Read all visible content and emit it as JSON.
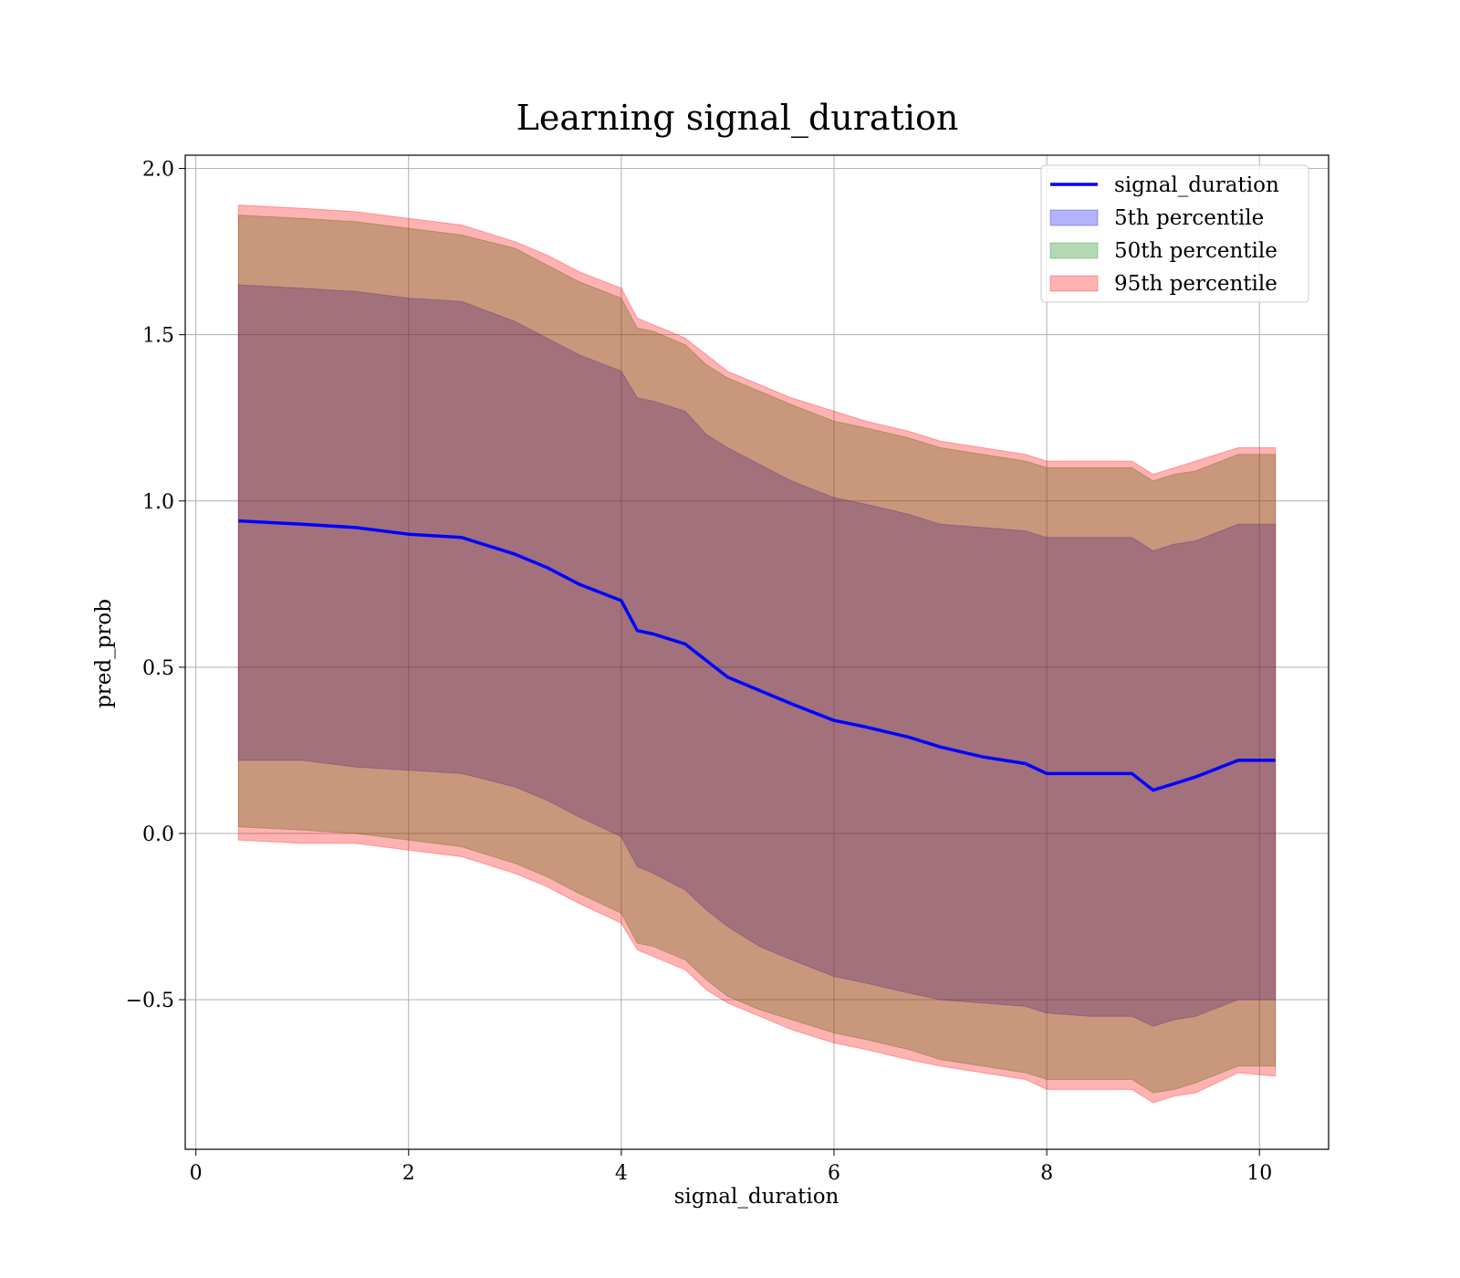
{
  "chart_data": {
    "type": "line",
    "title": "Learning signal_duration",
    "xlabel": "signal_duration",
    "ylabel": "pred_prob",
    "xlim": [
      -0.1,
      10.65
    ],
    "ylim": [
      -0.95,
      2.04
    ],
    "xticks": [
      0,
      2,
      4,
      6,
      8,
      10
    ],
    "xtick_labels": [
      "0",
      "2",
      "4",
      "6",
      "8",
      "10"
    ],
    "yticks": [
      -0.5,
      0.0,
      0.5,
      1.0,
      1.5,
      2.0
    ],
    "ytick_labels": [
      "−0.5",
      "0.0",
      "0.5",
      "1.0",
      "1.5",
      "2.0"
    ],
    "grid": true,
    "legend_position": "top-right",
    "x": [
      0.4,
      1.0,
      1.5,
      2.0,
      2.5,
      3.0,
      3.3,
      3.6,
      4.0,
      4.15,
      4.3,
      4.6,
      4.8,
      5.0,
      5.3,
      5.6,
      6.0,
      6.3,
      6.7,
      7.0,
      7.4,
      7.8,
      8.0,
      8.4,
      8.8,
      9.0,
      9.2,
      9.4,
      9.8,
      10.15
    ],
    "series": [
      {
        "name": "signal_duration",
        "kind": "line",
        "color": "#0000ff",
        "values": [
          0.94,
          0.93,
          0.92,
          0.9,
          0.89,
          0.84,
          0.8,
          0.75,
          0.7,
          0.61,
          0.6,
          0.57,
          0.52,
          0.47,
          0.43,
          0.39,
          0.34,
          0.32,
          0.29,
          0.26,
          0.23,
          0.21,
          0.18,
          0.18,
          0.18,
          0.13,
          0.15,
          0.17,
          0.22,
          0.22
        ]
      },
      {
        "name": "5th percentile",
        "kind": "band",
        "color": "#0000ff",
        "lower": [
          0.22,
          0.22,
          0.2,
          0.19,
          0.18,
          0.14,
          0.1,
          0.05,
          -0.01,
          -0.1,
          -0.12,
          -0.17,
          -0.23,
          -0.28,
          -0.34,
          -0.38,
          -0.43,
          -0.45,
          -0.48,
          -0.5,
          -0.51,
          -0.52,
          -0.54,
          -0.55,
          -0.55,
          -0.58,
          -0.56,
          -0.55,
          -0.5,
          -0.5
        ],
        "upper": [
          1.65,
          1.64,
          1.63,
          1.61,
          1.6,
          1.54,
          1.49,
          1.44,
          1.39,
          1.31,
          1.3,
          1.27,
          1.2,
          1.16,
          1.11,
          1.06,
          1.01,
          0.99,
          0.96,
          0.93,
          0.92,
          0.91,
          0.89,
          0.89,
          0.89,
          0.85,
          0.87,
          0.88,
          0.93,
          0.93
        ]
      },
      {
        "name": "50th percentile",
        "kind": "band",
        "color": "#008000",
        "lower": [
          0.02,
          0.01,
          0.0,
          -0.02,
          -0.04,
          -0.09,
          -0.13,
          -0.18,
          -0.24,
          -0.33,
          -0.34,
          -0.38,
          -0.44,
          -0.49,
          -0.53,
          -0.56,
          -0.6,
          -0.62,
          -0.65,
          -0.68,
          -0.7,
          -0.72,
          -0.74,
          -0.74,
          -0.74,
          -0.78,
          -0.77,
          -0.75,
          -0.7,
          -0.7
        ],
        "upper": [
          1.86,
          1.85,
          1.84,
          1.82,
          1.8,
          1.76,
          1.71,
          1.66,
          1.61,
          1.52,
          1.51,
          1.47,
          1.41,
          1.37,
          1.33,
          1.29,
          1.24,
          1.22,
          1.19,
          1.16,
          1.14,
          1.12,
          1.1,
          1.1,
          1.1,
          1.06,
          1.08,
          1.09,
          1.14,
          1.14
        ]
      },
      {
        "name": "95th percentile",
        "kind": "band",
        "color": "#ff0000",
        "lower": [
          -0.02,
          -0.03,
          -0.03,
          -0.05,
          -0.07,
          -0.12,
          -0.16,
          -0.21,
          -0.27,
          -0.35,
          -0.37,
          -0.41,
          -0.47,
          -0.51,
          -0.55,
          -0.59,
          -0.63,
          -0.65,
          -0.68,
          -0.7,
          -0.72,
          -0.74,
          -0.77,
          -0.77,
          -0.77,
          -0.81,
          -0.79,
          -0.78,
          -0.72,
          -0.73
        ],
        "upper": [
          1.89,
          1.88,
          1.87,
          1.85,
          1.83,
          1.78,
          1.74,
          1.69,
          1.64,
          1.55,
          1.53,
          1.49,
          1.44,
          1.39,
          1.35,
          1.31,
          1.27,
          1.24,
          1.21,
          1.18,
          1.16,
          1.14,
          1.12,
          1.12,
          1.12,
          1.08,
          1.1,
          1.12,
          1.16,
          1.16
        ]
      }
    ]
  }
}
